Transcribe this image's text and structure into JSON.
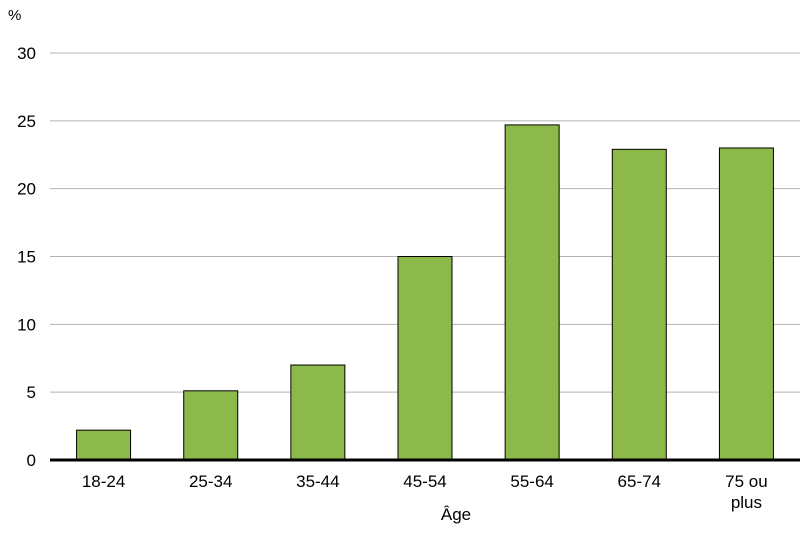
{
  "chart_data": {
    "type": "bar",
    "categories": [
      "18-24",
      "25-34",
      "35-44",
      "45-54",
      "55-64",
      "65-74",
      "75 ou plus"
    ],
    "values": [
      2.2,
      5.1,
      7.0,
      15.0,
      24.7,
      22.9,
      23.0
    ],
    "title": "",
    "xlabel": "Âge",
    "ylabel": "%",
    "ylim": [
      0,
      30
    ],
    "yticks": [
      0,
      5,
      10,
      15,
      20,
      25,
      30
    ],
    "grid": true,
    "legend": "none",
    "colors": {
      "bar_fill": "#8db84a",
      "bar_stroke": "#000000",
      "grid": "#b3b3b3",
      "axis": "#000000"
    }
  }
}
